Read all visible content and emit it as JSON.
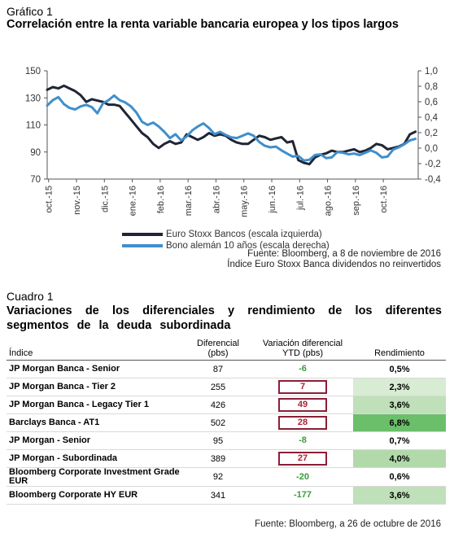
{
  "figure": {
    "label": "Gráfico 1",
    "title": "Correlación entre la renta variable bancaria europea y los tipos largos",
    "legend": [
      {
        "label": "Euro Stoxx Bancos (escala izquierda)",
        "color": "#1f2533"
      },
      {
        "label": "Bono alemán 10 años (escala derecha)",
        "color": "#3f8fcc"
      }
    ],
    "source": "Fuente: Bloomberg, a 8 de noviembre de 2016",
    "note": "Índice Euro Stoxx Banca dividendos no reinvertidos"
  },
  "chart_data": {
    "type": "line",
    "title": "Correlación entre la renta variable bancaria europea y los tipos largos",
    "x_tick_labels": [
      "oct.-15",
      "nov.-15",
      "dic.-15",
      "ene.-16",
      "feb.-16",
      "mar.-16",
      "abr.-16",
      "may.-16",
      "jun.-16",
      "jul.-16",
      "ago.-16",
      "sep.-16",
      "oct.-16"
    ],
    "y_left": {
      "ticks": [
        "70",
        "90",
        "110",
        "130",
        "150"
      ],
      "ylim": [
        70,
        150
      ]
    },
    "y_right": {
      "ticks": [
        "-0,4",
        "-0,2",
        "0,0",
        "0,2",
        "0,4",
        "0,6",
        "0,8",
        "1,0"
      ],
      "ylim": [
        -0.4,
        1.0
      ]
    },
    "x_range": [
      0,
      13.3
    ],
    "series": [
      {
        "name": "Euro Stoxx Bancos (escala izquierda)",
        "axis": "left",
        "color": "#1f2533",
        "x": [
          0,
          0.2,
          0.4,
          0.6,
          0.8,
          1.0,
          1.2,
          1.4,
          1.6,
          1.8,
          2.0,
          2.2,
          2.4,
          2.6,
          2.8,
          3.0,
          3.2,
          3.4,
          3.6,
          3.8,
          4.0,
          4.2,
          4.4,
          4.6,
          4.8,
          5.0,
          5.2,
          5.4,
          5.6,
          5.8,
          6.0,
          6.2,
          6.4,
          6.6,
          6.8,
          7.0,
          7.2,
          7.4,
          7.6,
          7.8,
          8.0,
          8.2,
          8.4,
          8.6,
          8.8,
          9.0,
          9.2,
          9.4,
          9.6,
          9.8,
          10.0,
          10.2,
          10.4,
          10.6,
          10.8,
          11.0,
          11.2,
          11.4,
          11.6,
          11.8,
          12.0,
          12.2,
          12.4,
          12.6,
          12.8,
          13.0,
          13.2
        ],
        "values": [
          136,
          138,
          137,
          139,
          137,
          135,
          132,
          127,
          129,
          128,
          127,
          125,
          125,
          124,
          119,
          114,
          109,
          104,
          101,
          96,
          93,
          96,
          98,
          96,
          97,
          103,
          101,
          99,
          101,
          104,
          102,
          103,
          102,
          99,
          97,
          96,
          96,
          99,
          102,
          101,
          99,
          100,
          101,
          97,
          98,
          84,
          82,
          81,
          86,
          88,
          89,
          91,
          90,
          90,
          91,
          92,
          90,
          91,
          93,
          96,
          95,
          92,
          93,
          94,
          96,
          103,
          105
        ]
      },
      {
        "name": "Bono alemán 10 años (escala derecha)",
        "axis": "right",
        "color": "#3f8fcc",
        "x": [
          0,
          0.2,
          0.4,
          0.6,
          0.8,
          1.0,
          1.2,
          1.4,
          1.6,
          1.8,
          2.0,
          2.2,
          2.4,
          2.6,
          2.8,
          3.0,
          3.2,
          3.4,
          3.6,
          3.8,
          4.0,
          4.2,
          4.4,
          4.6,
          4.8,
          5.0,
          5.2,
          5.4,
          5.6,
          5.8,
          6.0,
          6.2,
          6.4,
          6.6,
          6.8,
          7.0,
          7.2,
          7.4,
          7.6,
          7.8,
          8.0,
          8.2,
          8.4,
          8.6,
          8.8,
          9.0,
          9.2,
          9.4,
          9.6,
          9.8,
          10.0,
          10.2,
          10.4,
          10.6,
          10.8,
          11.0,
          11.2,
          11.4,
          11.6,
          11.8,
          12.0,
          12.2,
          12.4,
          12.6,
          12.8,
          13.0,
          13.2
        ],
        "values": [
          0.55,
          0.62,
          0.66,
          0.57,
          0.52,
          0.5,
          0.54,
          0.56,
          0.53,
          0.45,
          0.58,
          0.62,
          0.68,
          0.62,
          0.59,
          0.54,
          0.46,
          0.34,
          0.3,
          0.33,
          0.28,
          0.21,
          0.13,
          0.18,
          0.1,
          0.15,
          0.23,
          0.28,
          0.32,
          0.26,
          0.18,
          0.21,
          0.17,
          0.14,
          0.13,
          0.16,
          0.19,
          0.16,
          0.08,
          0.03,
          0.01,
          0.02,
          -0.03,
          -0.07,
          -0.11,
          -0.1,
          -0.16,
          -0.15,
          -0.09,
          -0.08,
          -0.13,
          -0.12,
          -0.05,
          -0.06,
          -0.08,
          -0.07,
          -0.09,
          -0.06,
          -0.03,
          -0.06,
          -0.12,
          -0.11,
          -0.02,
          0.01,
          0.05,
          0.1,
          0.12
        ]
      }
    ],
    "grid": false
  },
  "table": {
    "label": "Cuadro 1",
    "title": "Variaciones de los diferenciales y rendimiento de los diferentes segmentos de la deuda subordinada",
    "headers": {
      "name": "Índice",
      "diff": "Diferencial (pbs)",
      "var": "Variación diferencial YTD (pbs)",
      "ret": "Rendimiento"
    },
    "rows": [
      {
        "name": "JP Morgan Banca - Senior",
        "diff": "87",
        "var": "-6",
        "ret": "0,5%",
        "sign": "neg",
        "boxed": false,
        "ret_bg": "#ffffff"
      },
      {
        "name": "JP Morgan Banca - Tier 2",
        "diff": "255",
        "var": "7",
        "ret": "2,3%",
        "sign": "pos",
        "boxed": true,
        "ret_bg": "#d8ecd3"
      },
      {
        "name": "JP Morgan Banca - Legacy Tier 1",
        "diff": "426",
        "var": "49",
        "ret": "3,6%",
        "sign": "pos",
        "boxed": true,
        "ret_bg": "#bfe0b8"
      },
      {
        "name": "Barclays Banca - AT1",
        "diff": "502",
        "var": "28",
        "ret": "6,8%",
        "sign": "pos",
        "boxed": true,
        "ret_bg": "#6bbf6b"
      },
      {
        "name": "JP Morgan - Senior",
        "diff": "95",
        "var": "-8",
        "ret": "0,7%",
        "sign": "neg",
        "boxed": false,
        "ret_bg": "#ffffff"
      },
      {
        "name": "JP Morgan - Subordinada",
        "diff": "389",
        "var": "27",
        "ret": "4,0%",
        "sign": "pos",
        "boxed": true,
        "ret_bg": "#b2d9aa"
      },
      {
        "name": "Bloomberg Corporate Investment Grade EUR",
        "diff": "92",
        "var": "-20",
        "ret": "0,6%",
        "sign": "neg",
        "boxed": false,
        "ret_bg": "#ffffff"
      },
      {
        "name": "Bloomberg Corporate HY EUR",
        "diff": "341",
        "var": "-177",
        "ret": "3,6%",
        "sign": "neg",
        "boxed": false,
        "ret_bg": "#bfe0b8"
      }
    ],
    "source": "Fuente: Bloomberg, a 26 de octubre de 2016"
  }
}
